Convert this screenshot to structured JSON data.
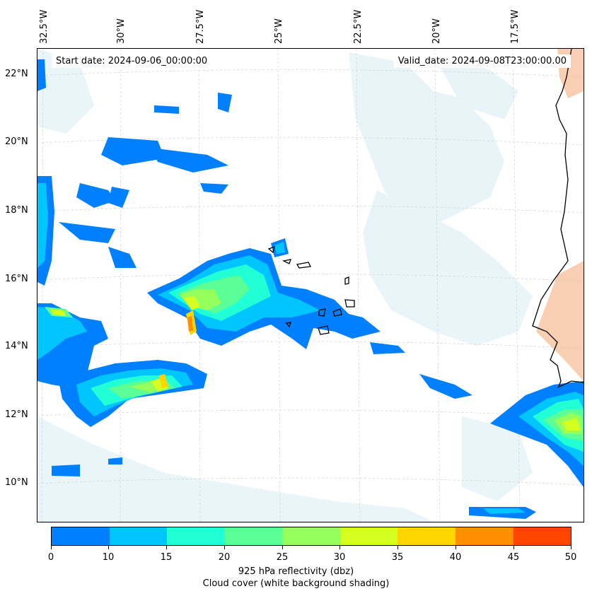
{
  "header": {
    "start_date": "Start date: 2024-09-06_00:00:00",
    "valid_date": "Valid_date: 2024-09-08T23:00:00.00"
  },
  "axes": {
    "lon_labels": [
      "32.5°W",
      "30°W",
      "27.5°W",
      "25°W",
      "22.5°W",
      "20°W",
      "17.5°W"
    ],
    "lat_labels": [
      "22°N",
      "20°N",
      "18°N",
      "16°N",
      "14°N",
      "12°N",
      "10°N"
    ]
  },
  "colorbar": {
    "ticks": [
      "0",
      "10",
      "15",
      "20",
      "25",
      "30",
      "35",
      "40",
      "45",
      "50"
    ],
    "colors": [
      "#0080ff",
      "#00c5ff",
      "#20ffd5",
      "#5cff95",
      "#95ff5c",
      "#d5ff20",
      "#ffd500",
      "#ff8f00",
      "#ff4500"
    ],
    "label": "925 hPa reflectivity (dbz)",
    "sublabel": "Cloud cover (white background shading)"
  },
  "map": {
    "colors": {
      "ocean": "#ffffff",
      "cloud_shading": "#d8ecf4",
      "land_shading": "#f7c7a5",
      "coastline": "#000000",
      "gridline": "#c8c8c8"
    }
  }
}
